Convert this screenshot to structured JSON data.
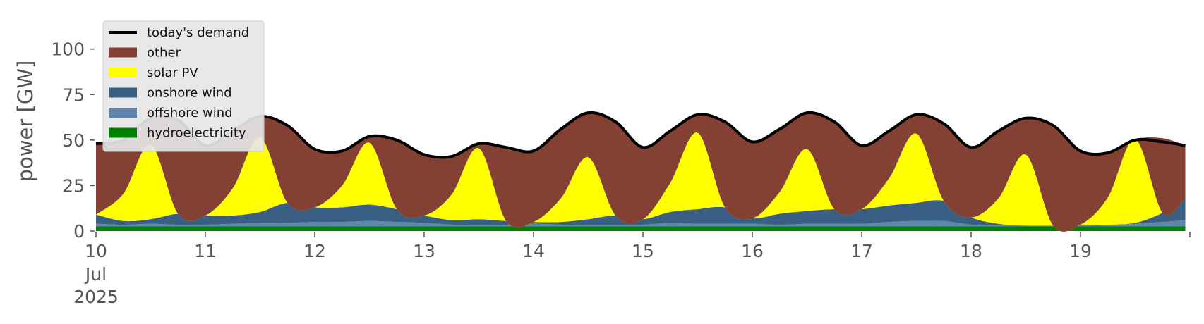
{
  "chart_data": {
    "type": "area",
    "ylabel": "power [GW]",
    "ylim": [
      0,
      120
    ],
    "xlim": [
      "2025-07-10",
      "2025-07-20"
    ],
    "grid": false,
    "legend_position": "top-left",
    "x_ticks": [
      {
        "date": "2025-07-10",
        "label": "10"
      },
      {
        "date": "2025-07-11",
        "label": "11"
      },
      {
        "date": "2025-07-12",
        "label": "12"
      },
      {
        "date": "2025-07-13",
        "label": "13"
      },
      {
        "date": "2025-07-14",
        "label": "14"
      },
      {
        "date": "2025-07-15",
        "label": "15"
      },
      {
        "date": "2025-07-16",
        "label": "16"
      },
      {
        "date": "2025-07-17",
        "label": "17"
      },
      {
        "date": "2025-07-18",
        "label": "18"
      },
      {
        "date": "2025-07-19",
        "label": "19"
      }
    ],
    "x_tick_sublabels": [
      "Jul",
      "2025"
    ],
    "y_ticks": [
      0,
      25,
      50,
      75,
      100
    ],
    "x": [
      "2025-07-10 00:00",
      "2025-07-10 06:00",
      "2025-07-10 12:00",
      "2025-07-10 18:00",
      "2025-07-11 00:00",
      "2025-07-11 06:00",
      "2025-07-11 12:00",
      "2025-07-11 18:00",
      "2025-07-12 00:00",
      "2025-07-12 06:00",
      "2025-07-12 12:00",
      "2025-07-12 18:00",
      "2025-07-13 00:00",
      "2025-07-13 06:00",
      "2025-07-13 12:00",
      "2025-07-13 18:00",
      "2025-07-14 00:00",
      "2025-07-14 06:00",
      "2025-07-14 12:00",
      "2025-07-14 18:00",
      "2025-07-15 00:00",
      "2025-07-15 06:00",
      "2025-07-15 12:00",
      "2025-07-15 18:00",
      "2025-07-16 00:00",
      "2025-07-16 06:00",
      "2025-07-16 12:00",
      "2025-07-16 18:00",
      "2025-07-17 00:00",
      "2025-07-17 06:00",
      "2025-07-17 12:00",
      "2025-07-17 18:00",
      "2025-07-18 00:00",
      "2025-07-18 06:00",
      "2025-07-18 12:00",
      "2025-07-18 18:00",
      "2025-07-19 00:00",
      "2025-07-19 06:00",
      "2025-07-19 12:00",
      "2025-07-19 18:00",
      "2025-07-19 23:00"
    ],
    "demand_line": {
      "name": "today's demand",
      "color": "#000000",
      "values": [
        48,
        50,
        62,
        61,
        47,
        55,
        63,
        58,
        45,
        44,
        52,
        50,
        42,
        41,
        48,
        46,
        44,
        56,
        65,
        60,
        46,
        55,
        64,
        60,
        49,
        56,
        65,
        60,
        47,
        55,
        64,
        59,
        46,
        55,
        62,
        58,
        44,
        43,
        50,
        49,
        47
      ]
    },
    "series": [
      {
        "name": "hydroelectricity",
        "color": "#008000",
        "values": [
          2.5,
          2.5,
          2.5,
          2.5,
          2.5,
          2.5,
          2.5,
          2.5,
          2.5,
          2.5,
          2.5,
          2.5,
          2.5,
          2.5,
          2.5,
          2.5,
          2.5,
          2.5,
          2.5,
          2.5,
          2.5,
          2.5,
          2.5,
          2.5,
          2.5,
          2.5,
          2.5,
          2.5,
          2.5,
          2.5,
          2.5,
          2.5,
          2.5,
          2.5,
          2.5,
          2.5,
          2.5,
          2.5,
          2.5,
          2.5,
          2.5
        ]
      },
      {
        "name": "offshore wind",
        "color": "#5f87ab",
        "values": [
          1.5,
          1,
          1.5,
          1,
          1,
          1.5,
          2,
          2,
          2.5,
          2.5,
          3,
          2.5,
          2,
          1,
          1,
          1,
          1.5,
          1,
          1,
          1,
          1,
          2,
          1.5,
          1.5,
          1.5,
          1,
          1.5,
          1.5,
          1.5,
          2.5,
          3,
          3,
          1,
          0.5,
          0.5,
          0.5,
          0.5,
          0.5,
          1.5,
          2.5,
          3.5
        ]
      },
      {
        "name": "onshore wind",
        "color": "#3a5f84",
        "values": [
          5,
          2,
          2.5,
          6,
          5,
          4.5,
          6,
          11,
          8,
          8,
          9,
          7,
          4,
          2.5,
          3,
          2,
          1,
          1.5,
          3,
          5,
          3,
          6,
          8,
          9,
          3,
          6,
          7,
          8,
          8,
          9,
          10,
          11,
          4,
          1,
          0,
          0,
          0.5,
          0.5,
          0.5,
          5,
          12
        ]
      },
      {
        "name": "solar PV",
        "color": "#ffff00",
        "values": [
          0,
          15,
          41,
          0,
          0,
          15,
          41,
          0,
          0,
          12,
          34,
          0,
          0,
          14,
          39,
          0,
          0,
          13,
          34,
          0,
          0,
          16,
          42,
          0,
          0,
          12,
          34,
          0,
          0,
          15,
          38,
          0,
          0,
          14,
          39,
          0,
          0,
          15,
          46,
          0,
          0
        ]
      },
      {
        "name": "other",
        "color": "#834033",
        "values": [
          39,
          29.5,
          14.5,
          51.5,
          38.5,
          31.5,
          11.5,
          42.5,
          32,
          19,
          3.5,
          38.5,
          33.5,
          21,
          2.5,
          40.5,
          39,
          38,
          24.5,
          51.5,
          39.5,
          28.5,
          10,
          47,
          42,
          34.5,
          20,
          48,
          35,
          26,
          10.5,
          42.5,
          38.5,
          37,
          20,
          55,
          41,
          24.5,
          0,
          41,
          29
        ]
      }
    ]
  }
}
